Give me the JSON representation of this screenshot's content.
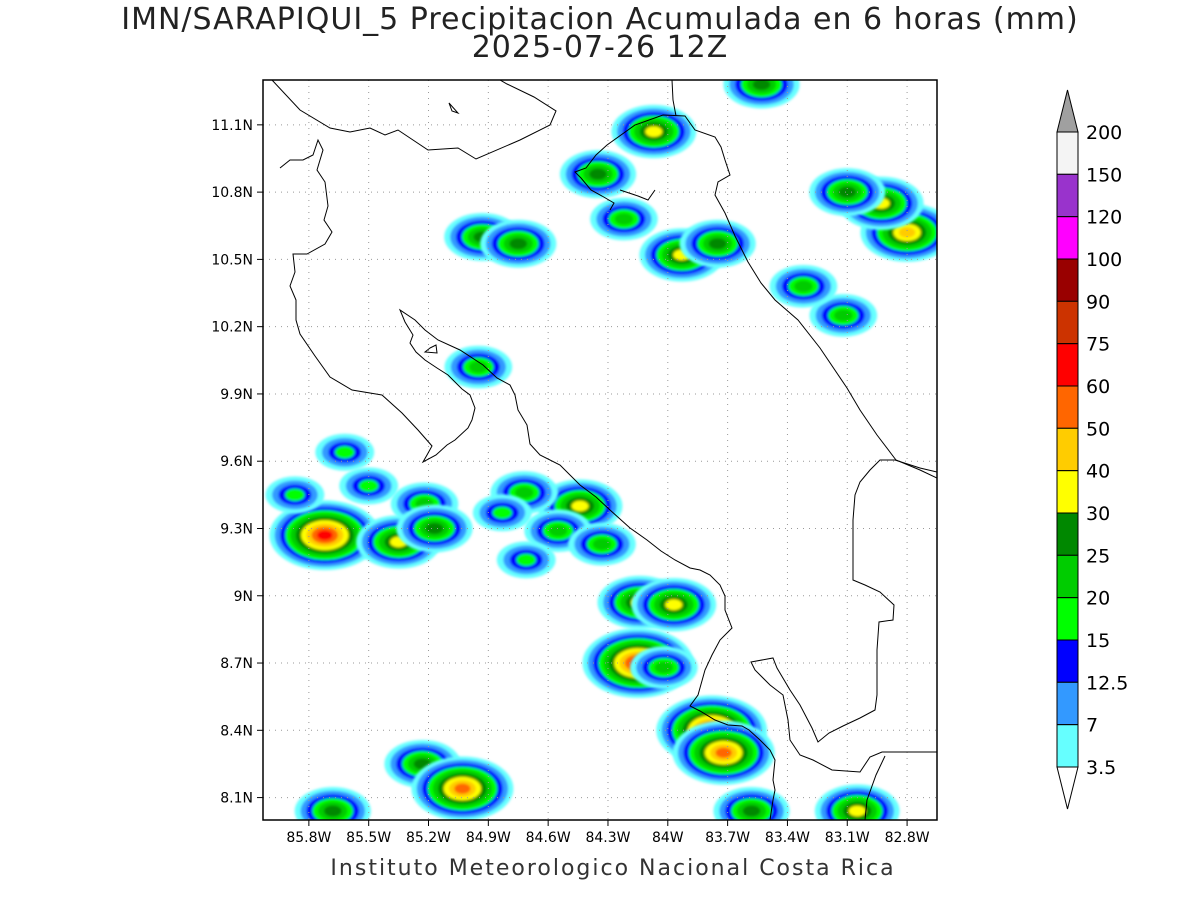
{
  "title_line1": "IMN/SARAPIQUI_5 Precipitacion Acumulada en 6 horas (mm)",
  "title_line2": "2025-07-26 12Z",
  "footer": "Instituto Meteorologico Nacional Costa Rica",
  "map": {
    "lon_range": [
      -86.03,
      -82.65
    ],
    "lat_range": [
      8.0,
      11.3
    ],
    "lon_ticks": [
      "85.8W",
      "85.5W",
      "85.2W",
      "84.9W",
      "84.6W",
      "84.3W",
      "84W",
      "83.7W",
      "83.4W",
      "83.1W",
      "82.8W"
    ],
    "lon_values": [
      -85.8,
      -85.5,
      -85.2,
      -84.9,
      -84.6,
      -84.3,
      -84.0,
      -83.7,
      -83.4,
      -83.1,
      -82.8
    ],
    "lat_ticks": [
      "11.1N",
      "10.8N",
      "10.5N",
      "10.2N",
      "9.9N",
      "9.6N",
      "9.3N",
      "9N",
      "8.7N",
      "8.4N",
      "8.1N"
    ],
    "lat_values": [
      11.1,
      10.8,
      10.5,
      10.2,
      9.9,
      9.6,
      9.3,
      9.0,
      8.7,
      8.4,
      8.1
    ],
    "grid": "dotted"
  },
  "colorbar": {
    "labels": [
      "3.5",
      "7",
      "12.5",
      "15",
      "20",
      "25",
      "30",
      "40",
      "50",
      "60",
      "75",
      "90",
      "100",
      "120",
      "150",
      "200"
    ],
    "colors": [
      "#ffffff",
      "#66ffff",
      "#3399ff",
      "#0000ff",
      "#00ff00",
      "#00cc00",
      "#008800",
      "#ffff00",
      "#ffcc00",
      "#ff6600",
      "#ff0000",
      "#cc3300",
      "#990000",
      "#ff00ff",
      "#9933cc",
      "#f4f4f4",
      "#a0a0a0"
    ]
  },
  "precip_cells": [
    {
      "lon": -85.72,
      "lat": 9.27,
      "level": 10
    },
    {
      "lon": -85.35,
      "lat": 9.24,
      "level": 7
    },
    {
      "lon": -84.44,
      "lat": 9.4,
      "level": 7
    },
    {
      "lon": -84.72,
      "lat": 9.46,
      "level": 5
    },
    {
      "lon": -84.55,
      "lat": 9.29,
      "level": 5
    },
    {
      "lon": -84.33,
      "lat": 9.23,
      "level": 5
    },
    {
      "lon": -84.14,
      "lat": 8.97,
      "level": 7
    },
    {
      "lon": -83.97,
      "lat": 8.96,
      "level": 7
    },
    {
      "lon": -84.15,
      "lat": 8.7,
      "level": 10
    },
    {
      "lon": -84.02,
      "lat": 8.68,
      "level": 5
    },
    {
      "lon": -83.78,
      "lat": 8.4,
      "level": 10
    },
    {
      "lon": -83.72,
      "lat": 8.3,
      "level": 9
    },
    {
      "lon": -85.23,
      "lat": 8.25,
      "level": 6
    },
    {
      "lon": -85.03,
      "lat": 8.14,
      "level": 9
    },
    {
      "lon": -85.68,
      "lat": 8.04,
      "level": 6
    },
    {
      "lon": -83.58,
      "lat": 8.04,
      "level": 6
    },
    {
      "lon": -83.05,
      "lat": 8.04,
      "level": 7
    },
    {
      "lon": -84.93,
      "lat": 10.6,
      "level": 6
    },
    {
      "lon": -84.75,
      "lat": 10.57,
      "level": 6
    },
    {
      "lon": -83.93,
      "lat": 10.52,
      "level": 7
    },
    {
      "lon": -83.75,
      "lat": 10.57,
      "level": 6
    },
    {
      "lon": -84.07,
      "lat": 11.07,
      "level": 7
    },
    {
      "lon": -84.35,
      "lat": 10.88,
      "level": 6
    },
    {
      "lon": -84.22,
      "lat": 10.68,
      "level": 5
    },
    {
      "lon": -83.53,
      "lat": 11.28,
      "level": 6
    },
    {
      "lon": -82.8,
      "lat": 10.62,
      "level": 8
    },
    {
      "lon": -82.93,
      "lat": 10.75,
      "level": 7
    },
    {
      "lon": -83.1,
      "lat": 10.8,
      "level": 6
    },
    {
      "lon": -83.12,
      "lat": 10.25,
      "level": 5
    },
    {
      "lon": -83.32,
      "lat": 10.38,
      "level": 5
    },
    {
      "lon": -84.95,
      "lat": 10.02,
      "level": 5
    },
    {
      "lon": -85.22,
      "lat": 9.41,
      "level": 5
    },
    {
      "lon": -85.17,
      "lat": 9.3,
      "level": 6
    },
    {
      "lon": -85.5,
      "lat": 9.49,
      "level": 4
    },
    {
      "lon": -85.62,
      "lat": 9.64,
      "level": 4
    },
    {
      "lon": -85.87,
      "lat": 9.45,
      "level": 4
    },
    {
      "lon": -84.83,
      "lat": 9.37,
      "level": 4
    },
    {
      "lon": -84.71,
      "lat": 9.16,
      "level": 4
    }
  ]
}
